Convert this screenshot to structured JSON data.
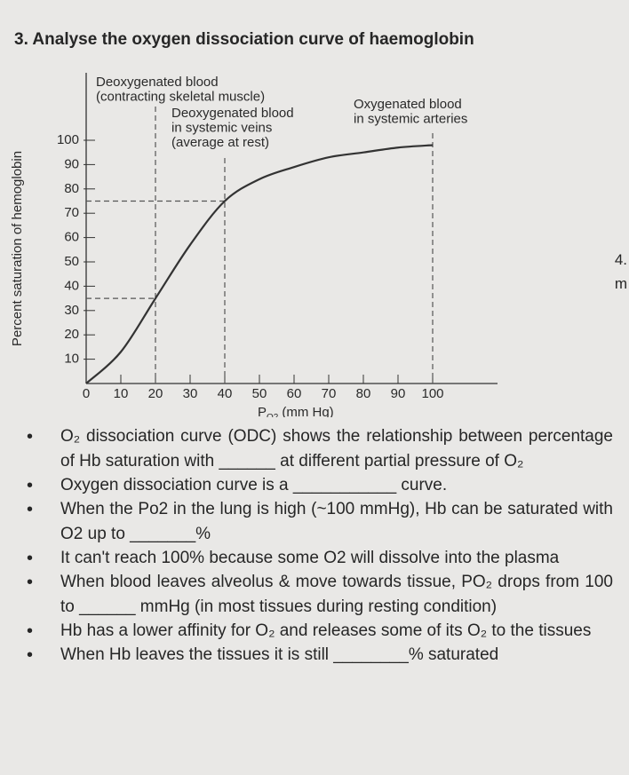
{
  "header": {
    "title": "3. Analyse the oxygen dissociation curve of haemoglobin"
  },
  "chart_data": {
    "type": "line",
    "x": [
      0,
      10,
      20,
      30,
      40,
      50,
      60,
      70,
      80,
      90,
      100
    ],
    "y": [
      0,
      13,
      35,
      57,
      75,
      84,
      89,
      93,
      95,
      97,
      98
    ],
    "color": "#333333",
    "xlim": [
      0,
      100
    ],
    "ylim": [
      0,
      100
    ],
    "xticks": [
      0,
      10,
      20,
      30,
      40,
      50,
      60,
      70,
      80,
      90,
      100
    ],
    "yticks": [
      10,
      20,
      30,
      40,
      50,
      60,
      70,
      80,
      90,
      100
    ],
    "x_label": [
      "P",
      "O2",
      "(mm Hg)"
    ],
    "y_label": "Percent saturation of hemoglobin",
    "annotations": [
      {
        "lines": [
          "Deoxygenated blood",
          "(contracting skeletal muscle)"
        ]
      },
      {
        "lines": [
          "Deoxygenated blood",
          "in systemic veins",
          "(average at rest)"
        ]
      },
      {
        "lines": [
          "Oxygenated blood",
          "in systemic arteries"
        ]
      }
    ]
  },
  "bullets": [
    "O₂ dissociation curve (ODC) shows the relationship between percentage of Hb saturation with ______ at different partial pressure of O₂",
    "Oxygen dissociation curve is a ___________ curve.",
    "When the Po2 in the lung is high (~100 mmHg), Hb can be saturated with O2 up to _______%",
    "It can't reach 100% because some O2 will dissolve into the plasma",
    "When blood leaves alveolus & move towards tissue, PO₂ drops from 100 to ______ mmHg (in most tissues during resting condition)",
    "Hb has a lower affinity for O₂ and releases some of its O₂ to the tissues",
    "When Hb leaves the tissues it is still ________% saturated"
  ],
  "side_fragments": [
    "4.",
    "m"
  ]
}
